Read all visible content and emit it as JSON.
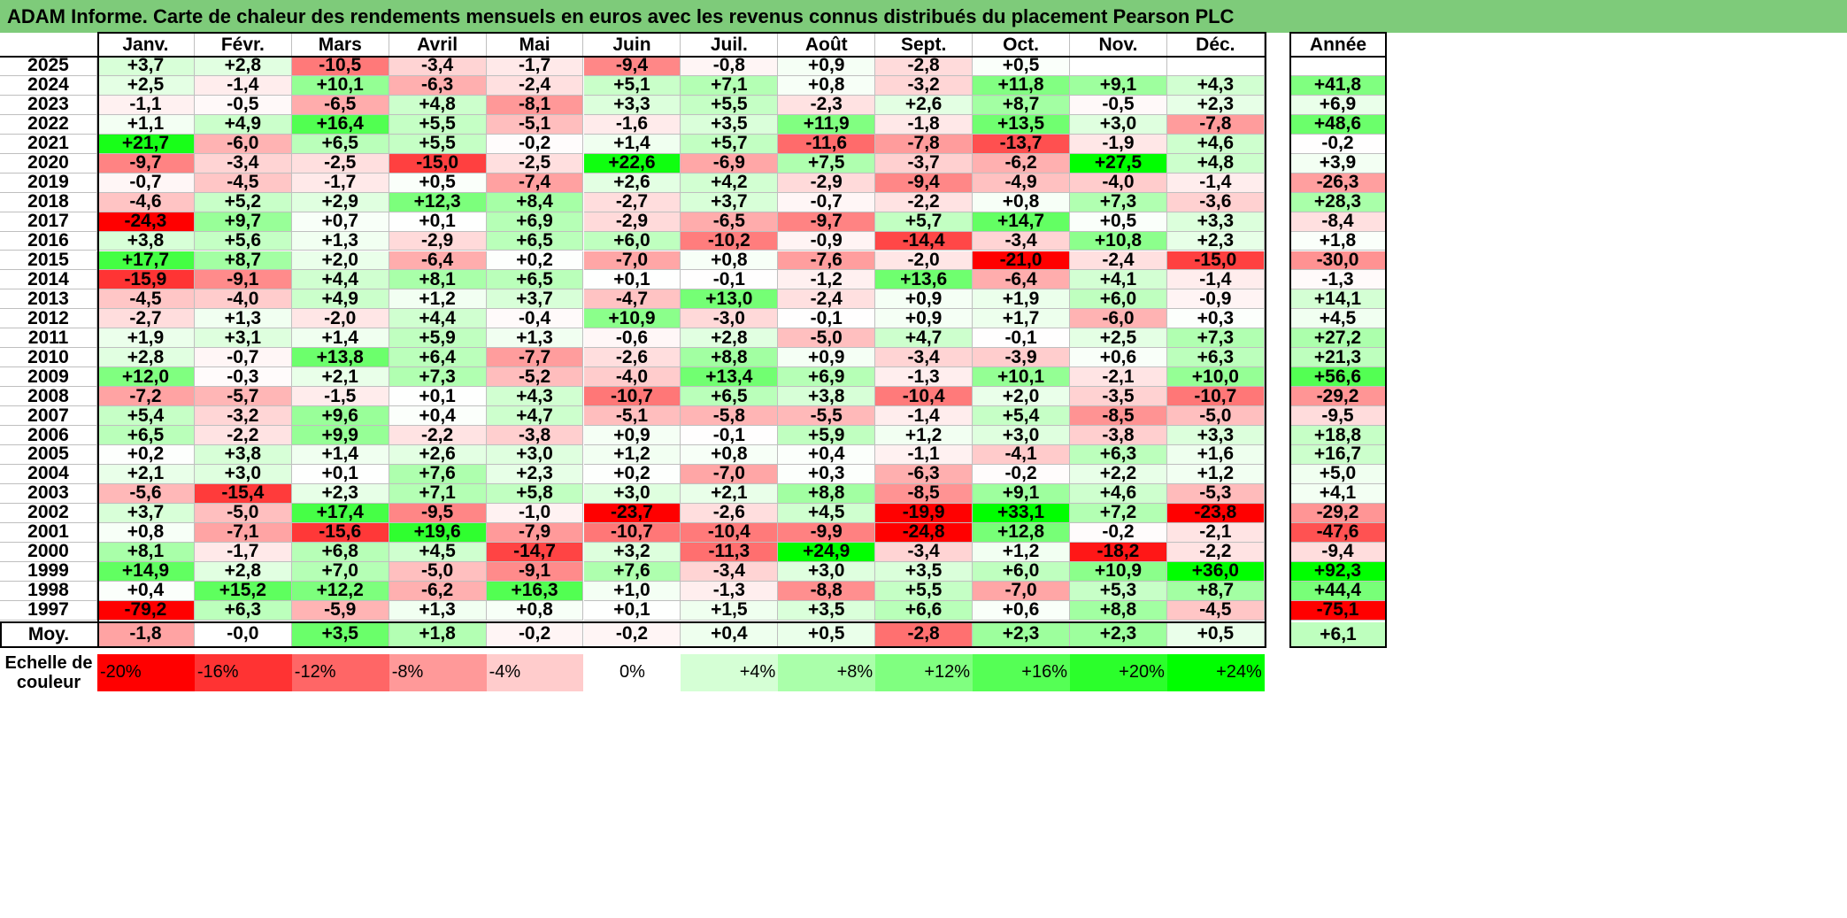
{
  "title": "ADAM Informe. Carte de chaleur des rendements mensuels en euros avec les revenus connus distribués du placement Pearson PLC",
  "chart_data": {
    "type": "heatmap",
    "columns": [
      "Janv.",
      "Févr.",
      "Mars",
      "Avril",
      "Mai",
      "Juin",
      "Juil.",
      "Août",
      "Sept.",
      "Oct.",
      "Nov.",
      "Déc."
    ],
    "year_header": "Année",
    "rows": [
      {
        "year": "2025",
        "values": [
          "+3,7",
          "+2,8",
          "-10,5",
          "-3,4",
          "-1,7",
          "-9,4",
          "-0,8",
          "+0,9",
          "-2,8",
          "+0,5",
          "",
          ""
        ],
        "annual": ""
      },
      {
        "year": "2024",
        "values": [
          "+2,5",
          "-1,4",
          "+10,1",
          "-6,3",
          "-2,4",
          "+5,1",
          "+7,1",
          "+0,8",
          "-3,2",
          "+11,8",
          "+9,1",
          "+4,3"
        ],
        "annual": "+41,8"
      },
      {
        "year": "2023",
        "values": [
          "-1,1",
          "-0,5",
          "-6,5",
          "+4,8",
          "-8,1",
          "+3,3",
          "+5,5",
          "-2,3",
          "+2,6",
          "+8,7",
          "-0,5",
          "+2,3"
        ],
        "annual": "+6,9"
      },
      {
        "year": "2022",
        "values": [
          "+1,1",
          "+4,9",
          "+16,4",
          "+5,5",
          "-5,1",
          "-1,6",
          "+3,5",
          "+11,9",
          "-1,8",
          "+13,5",
          "+3,0",
          "-7,8"
        ],
        "annual": "+48,6"
      },
      {
        "year": "2021",
        "values": [
          "+21,7",
          "-6,0",
          "+6,5",
          "+5,5",
          "-0,2",
          "+1,4",
          "+5,7",
          "-11,6",
          "-7,8",
          "-13,7",
          "-1,9",
          "+4,6"
        ],
        "annual": "-0,2"
      },
      {
        "year": "2020",
        "values": [
          "-9,7",
          "-3,4",
          "-2,5",
          "-15,0",
          "-2,5",
          "+22,6",
          "-6,9",
          "+7,5",
          "-3,7",
          "-6,2",
          "+27,5",
          "+4,8"
        ],
        "annual": "+3,9"
      },
      {
        "year": "2019",
        "values": [
          "-0,7",
          "-4,5",
          "-1,7",
          "+0,5",
          "-7,4",
          "+2,6",
          "+4,2",
          "-2,9",
          "-9,4",
          "-4,9",
          "-4,0",
          "-1,4"
        ],
        "annual": "-26,3"
      },
      {
        "year": "2018",
        "values": [
          "-4,6",
          "+5,2",
          "+2,9",
          "+12,3",
          "+8,4",
          "-2,7",
          "+3,7",
          "-0,7",
          "-2,2",
          "+0,8",
          "+7,3",
          "-3,6"
        ],
        "annual": "+28,3"
      },
      {
        "year": "2017",
        "values": [
          "-24,3",
          "+9,7",
          "+0,7",
          "+0,1",
          "+6,9",
          "-2,9",
          "-6,5",
          "-9,7",
          "+5,7",
          "+14,7",
          "+0,5",
          "+3,3"
        ],
        "annual": "-8,4"
      },
      {
        "year": "2016",
        "values": [
          "+3,8",
          "+5,6",
          "+1,3",
          "-2,9",
          "+6,5",
          "+6,0",
          "-10,2",
          "-0,9",
          "-14,4",
          "-3,4",
          "+10,8",
          "+2,3"
        ],
        "annual": "+1,8"
      },
      {
        "year": "2015",
        "values": [
          "+17,7",
          "+8,7",
          "+2,0",
          "-6,4",
          "+0,2",
          "-7,0",
          "+0,8",
          "-7,6",
          "-2,0",
          "-21,0",
          "-2,4",
          "-15,0"
        ],
        "annual": "-30,0"
      },
      {
        "year": "2014",
        "values": [
          "-15,9",
          "-9,1",
          "+4,4",
          "+8,1",
          "+6,5",
          "+0,1",
          "-0,1",
          "-1,2",
          "+13,6",
          "-6,4",
          "+4,1",
          "-1,4"
        ],
        "annual": "-1,3"
      },
      {
        "year": "2013",
        "values": [
          "-4,5",
          "-4,0",
          "+4,9",
          "+1,2",
          "+3,7",
          "-4,7",
          "+13,0",
          "-2,4",
          "+0,9",
          "+1,9",
          "+6,0",
          "-0,9"
        ],
        "annual": "+14,1"
      },
      {
        "year": "2012",
        "values": [
          "-2,7",
          "+1,3",
          "-2,0",
          "+4,4",
          "-0,4",
          "+10,9",
          "-3,0",
          "-0,1",
          "+0,9",
          "+1,7",
          "-6,0",
          "+0,3"
        ],
        "annual": "+4,5"
      },
      {
        "year": "2011",
        "values": [
          "+1,9",
          "+3,1",
          "+1,4",
          "+5,9",
          "+1,3",
          "-0,6",
          "+2,8",
          "-5,0",
          "+4,7",
          "-0,1",
          "+2,5",
          "+7,3"
        ],
        "annual": "+27,2"
      },
      {
        "year": "2010",
        "values": [
          "+2,8",
          "-0,7",
          "+13,8",
          "+6,4",
          "-7,7",
          "-2,6",
          "+8,8",
          "+0,9",
          "-3,4",
          "-3,9",
          "+0,6",
          "+6,3"
        ],
        "annual": "+21,3"
      },
      {
        "year": "2009",
        "values": [
          "+12,0",
          "-0,3",
          "+2,1",
          "+7,3",
          "-5,2",
          "-4,0",
          "+13,4",
          "+6,9",
          "-1,3",
          "+10,1",
          "-2,1",
          "+10,0"
        ],
        "annual": "+56,6"
      },
      {
        "year": "2008",
        "values": [
          "-7,2",
          "-5,7",
          "-1,5",
          "+0,1",
          "+4,3",
          "-10,7",
          "+6,5",
          "+3,8",
          "-10,4",
          "+2,0",
          "-3,5",
          "-10,7"
        ],
        "annual": "-29,2"
      },
      {
        "year": "2007",
        "values": [
          "+5,4",
          "-3,2",
          "+9,6",
          "+0,4",
          "+4,7",
          "-5,1",
          "-5,8",
          "-5,5",
          "-1,4",
          "+5,4",
          "-8,5",
          "-5,0"
        ],
        "annual": "-9,5"
      },
      {
        "year": "2006",
        "values": [
          "+6,5",
          "-2,2",
          "+9,9",
          "-2,2",
          "-3,8",
          "+0,9",
          "-0,1",
          "+5,9",
          "+1,2",
          "+3,0",
          "-3,8",
          "+3,3"
        ],
        "annual": "+18,8"
      },
      {
        "year": "2005",
        "values": [
          "+0,2",
          "+3,8",
          "+1,4",
          "+2,6",
          "+3,0",
          "+1,2",
          "+0,8",
          "+0,4",
          "-1,1",
          "-4,1",
          "+6,3",
          "+1,6"
        ],
        "annual": "+16,7"
      },
      {
        "year": "2004",
        "values": [
          "+2,1",
          "+3,0",
          "+0,1",
          "+7,6",
          "+2,3",
          "+0,2",
          "-7,0",
          "+0,3",
          "-6,3",
          "-0,2",
          "+2,2",
          "+1,2"
        ],
        "annual": "+5,0"
      },
      {
        "year": "2003",
        "values": [
          "-5,6",
          "-15,4",
          "+2,3",
          "+7,1",
          "+5,8",
          "+3,0",
          "+2,1",
          "+8,8",
          "-8,5",
          "+9,1",
          "+4,6",
          "-5,3"
        ],
        "annual": "+4,1"
      },
      {
        "year": "2002",
        "values": [
          "+3,7",
          "-5,0",
          "+17,4",
          "-9,5",
          "-1,0",
          "-23,7",
          "-2,6",
          "+4,5",
          "-19,9",
          "+33,1",
          "+7,2",
          "-23,8"
        ],
        "annual": "-29,2"
      },
      {
        "year": "2001",
        "values": [
          "+0,8",
          "-7,1",
          "-15,6",
          "+19,6",
          "-7,9",
          "-10,7",
          "-10,4",
          "-9,9",
          "-24,8",
          "+12,8",
          "-0,2",
          "-2,1"
        ],
        "annual": "-47,6"
      },
      {
        "year": "2000",
        "values": [
          "+8,1",
          "-1,7",
          "+6,8",
          "+4,5",
          "-14,7",
          "+3,2",
          "-11,3",
          "+24,9",
          "-3,4",
          "+1,2",
          "-18,2",
          "-2,2"
        ],
        "annual": "-9,4"
      },
      {
        "year": "1999",
        "values": [
          "+14,9",
          "+2,8",
          "+7,0",
          "-5,0",
          "-9,1",
          "+7,6",
          "-3,4",
          "+3,0",
          "+3,5",
          "+6,0",
          "+10,9",
          "+36,0"
        ],
        "annual": "+92,3"
      },
      {
        "year": "1998",
        "values": [
          "+0,4",
          "+15,2",
          "+12,2",
          "-6,2",
          "+16,3",
          "+1,0",
          "-1,3",
          "-8,8",
          "+5,5",
          "-7,0",
          "+5,3",
          "+8,7"
        ],
        "annual": "+44,4"
      },
      {
        "year": "1997",
        "values": [
          "-79,2",
          "+6,3",
          "-5,9",
          "+1,3",
          "+0,8",
          "+0,1",
          "+1,5",
          "+3,5",
          "+6,6",
          "+0,6",
          "+8,8",
          "-4,5"
        ],
        "annual": "-75,1"
      }
    ],
    "average": {
      "label": "Moy.",
      "values": [
        "-1,8",
        "-0,0",
        "+3,5",
        "+1,8",
        "-0,2",
        "-0,2",
        "+0,4",
        "+0,5",
        "-2,8",
        "+2,3",
        "+2,3",
        "+0,5"
      ],
      "annual": "+6,1"
    },
    "color_scale": {
      "label": "Echelle de couleur",
      "steps": [
        {
          "label": "-20%",
          "value": -20
        },
        {
          "label": "-16%",
          "value": -16
        },
        {
          "label": "-12%",
          "value": -12
        },
        {
          "label": "-8%",
          "value": -8
        },
        {
          "label": "-4%",
          "value": -4
        },
        {
          "label": "0%",
          "value": 0
        },
        {
          "label": "+4%",
          "value": 4
        },
        {
          "label": "+8%",
          "value": 8
        },
        {
          "label": "+12%",
          "value": 12
        },
        {
          "label": "+16%",
          "value": 16
        },
        {
          "label": "+20%",
          "value": 20
        },
        {
          "label": "+24%",
          "value": 24
        }
      ],
      "negative_color": "#ff0000",
      "neutral_color": "#ffffff",
      "positive_color": "#00ff00"
    }
  }
}
